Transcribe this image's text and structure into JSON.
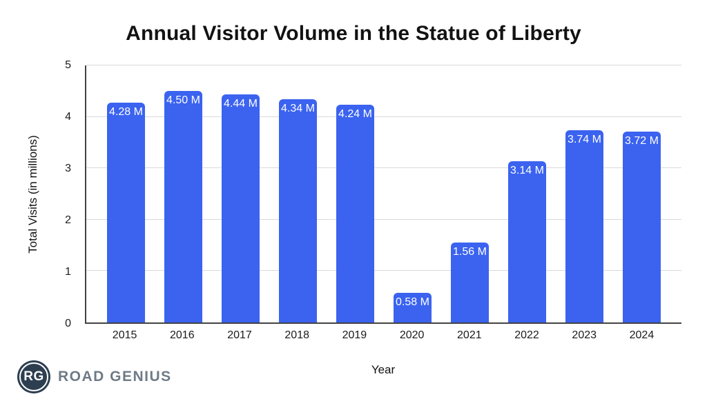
{
  "chart": {
    "title": "Annual Visitor Volume in the Statue of Liberty",
    "xlabel": "Year",
    "ylabel": "Total Visits (in millions)"
  },
  "chart_data": {
    "type": "bar",
    "title": "Annual Visitor Volume in the Statue of Liberty",
    "xlabel": "Year",
    "ylabel": "Total Visits (in millions)",
    "categories": [
      "2015",
      "2016",
      "2017",
      "2018",
      "2019",
      "2020",
      "2021",
      "2022",
      "2023",
      "2024"
    ],
    "values": [
      4.28,
      4.5,
      4.44,
      4.34,
      4.24,
      0.58,
      1.56,
      3.14,
      3.74,
      3.72
    ],
    "value_labels": [
      "4.28 M",
      "4.50 M",
      "4.44 M",
      "4.34 M",
      "4.24 M",
      "0.58 M",
      "1.56 M",
      "3.14 M",
      "3.74 M",
      "3.72 M"
    ],
    "y_ticks": [
      0,
      1,
      2,
      3,
      4,
      5
    ],
    "ylim": [
      0,
      5
    ],
    "grid": true,
    "legend": false,
    "bar_color": "#3b63f0",
    "value_label_color": "#ffffff",
    "gridline_color": "#d9d9d9",
    "axis_color": "#424242"
  },
  "logo": {
    "monogram": "RG",
    "brand_name": "ROAD GENIUS",
    "circle_color": "#2d3e50",
    "text_color": "#6e7b87"
  }
}
